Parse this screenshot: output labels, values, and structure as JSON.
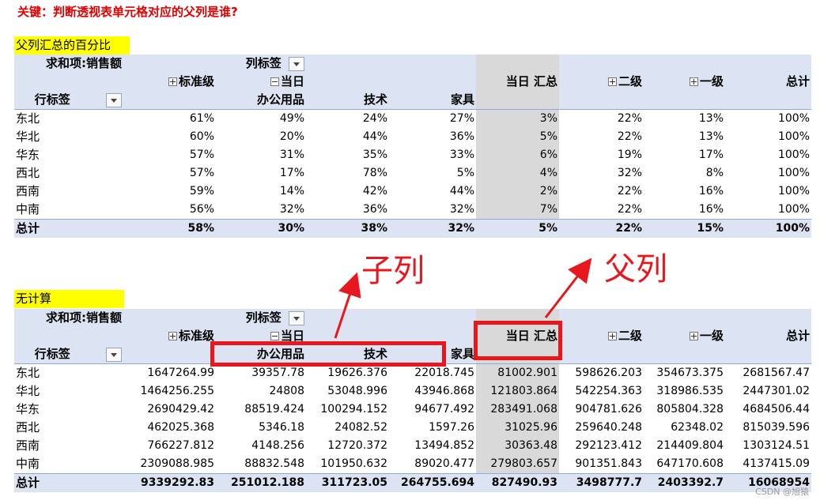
{
  "title": "关键：判断透视表单元格对应的父列是谁?",
  "table1": {
    "label": "父列汇总的百分比",
    "corner": "求和项:销售额",
    "col_labels": "列标签",
    "row_labels": "行标签",
    "h_standard": "标准级",
    "h_today": "当日",
    "h_office": "办公用品",
    "h_tech": "技术",
    "h_furniture": "家具",
    "h_today_total": "当日 汇总",
    "h_level2": "二级",
    "h_level1": "一级",
    "h_grand": "总计",
    "rows": [
      {
        "name": "东北",
        "v": [
          "61%",
          "49%",
          "24%",
          "27%",
          "3%",
          "22%",
          "13%",
          "100%"
        ]
      },
      {
        "name": "华北",
        "v": [
          "60%",
          "20%",
          "44%",
          "36%",
          "5%",
          "22%",
          "13%",
          "100%"
        ]
      },
      {
        "name": "华东",
        "v": [
          "57%",
          "31%",
          "35%",
          "33%",
          "6%",
          "19%",
          "17%",
          "100%"
        ]
      },
      {
        "name": "西北",
        "v": [
          "57%",
          "17%",
          "78%",
          "5%",
          "4%",
          "32%",
          "8%",
          "100%"
        ]
      },
      {
        "name": "西南",
        "v": [
          "59%",
          "14%",
          "42%",
          "44%",
          "2%",
          "22%",
          "16%",
          "100%"
        ]
      },
      {
        "name": "中南",
        "v": [
          "56%",
          "32%",
          "36%",
          "32%",
          "7%",
          "22%",
          "16%",
          "100%"
        ]
      }
    ],
    "total": {
      "name": "总计",
      "v": [
        "58%",
        "30%",
        "38%",
        "32%",
        "5%",
        "22%",
        "15%",
        "100%"
      ]
    }
  },
  "table2": {
    "label": "无计算",
    "corner": "求和项:销售额",
    "col_labels": "列标签",
    "row_labels": "行标签",
    "h_standard": "标准级",
    "h_today": "当日",
    "h_office": "办公用品",
    "h_tech": "技术",
    "h_furniture": "家具",
    "h_today_total": "当日 汇总",
    "h_level2": "二级",
    "h_level1": "一级",
    "h_grand": "总计",
    "rows": [
      {
        "name": "东北",
        "v": [
          "1647264.99",
          "39357.78",
          "19626.376",
          "22018.745",
          "81002.901",
          "598626.203",
          "354673.375",
          "2681567.47"
        ]
      },
      {
        "name": "华北",
        "v": [
          "1464256.255",
          "24808",
          "53048.996",
          "43946.868",
          "121803.864",
          "542254.363",
          "318986.535",
          "2447301.02"
        ]
      },
      {
        "name": "华东",
        "v": [
          "2690429.42",
          "88519.424",
          "100294.152",
          "94677.492",
          "283491.068",
          "904781.626",
          "805804.328",
          "4684506.44"
        ]
      },
      {
        "name": "西北",
        "v": [
          "462025.368",
          "5346.18",
          "24082.52",
          "1597.26",
          "31025.96",
          "259640.248",
          "62348.02",
          "815039.596"
        ]
      },
      {
        "name": "西南",
        "v": [
          "766227.812",
          "4148.256",
          "12720.372",
          "13494.852",
          "30363.48",
          "292123.412",
          "214409.804",
          "1303124.51"
        ]
      },
      {
        "name": "中南",
        "v": [
          "2309088.985",
          "88832.548",
          "101950.632",
          "89020.477",
          "279803.657",
          "901351.843",
          "647170.608",
          "4137415.09"
        ]
      }
    ],
    "total": {
      "name": "总计",
      "v": [
        "9339292.83",
        "251012.188",
        "311723.05",
        "264755.694",
        "827490.93",
        "3498777.7",
        "2403392.7",
        "16068954"
      ]
    }
  },
  "annotations": {
    "child_col": "子列",
    "parent_col": "父列"
  },
  "colors": {
    "highlight_yellow": "#ffff00",
    "header_blue": "#dce3f2",
    "today_total_gray": "#d9d9d9",
    "annotation_red": "#e8171e",
    "title_red": "#e00000"
  },
  "watermark": "CSDN @旭猿"
}
